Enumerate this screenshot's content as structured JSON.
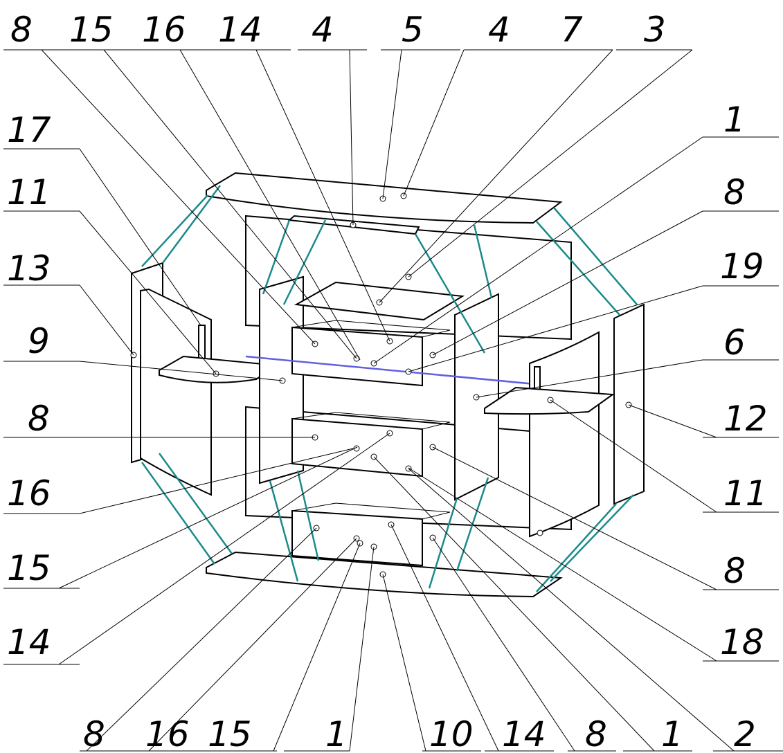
{
  "callouts": {
    "top": [
      "8",
      "15",
      "16",
      "14",
      "4",
      "5",
      "4",
      "7",
      "3"
    ],
    "left": [
      "17",
      "11",
      "13",
      "9",
      "8",
      "16",
      "15",
      "14"
    ],
    "right": [
      "1",
      "8",
      "19",
      "6",
      "12",
      "11",
      "8",
      "18"
    ],
    "bottom": [
      "8",
      "16",
      "15",
      "1",
      "10",
      "14",
      "8",
      "1",
      "2"
    ]
  }
}
